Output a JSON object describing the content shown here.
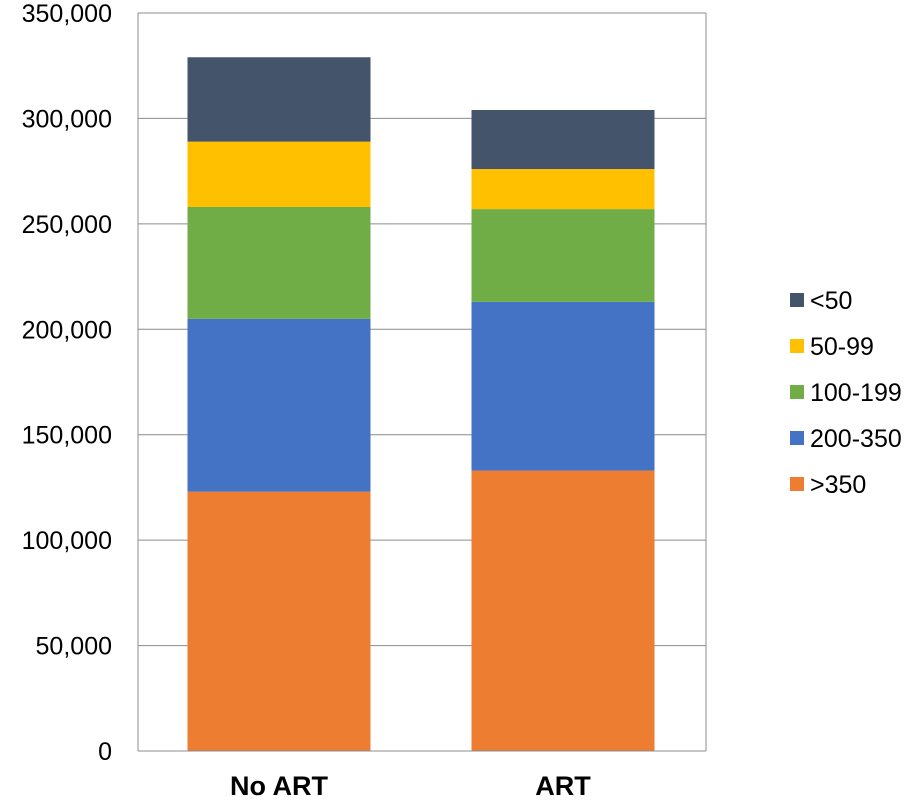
{
  "chart_data": {
    "type": "bar",
    "stacked": true,
    "title": "",
    "xlabel": "",
    "ylabel": "",
    "categories": [
      "No ART",
      "ART"
    ],
    "ylim": [
      0,
      350000
    ],
    "yticks": [
      "0",
      "50,000",
      "100,000",
      "150,000",
      "200,000",
      "250,000",
      "300,000",
      "350,000"
    ],
    "ytick_values": [
      0,
      50000,
      100000,
      150000,
      200000,
      250000,
      300000,
      350000
    ],
    "grid": true,
    "legend_position": "right",
    "series": [
      {
        "name": ">350",
        "color": "#ED7D31",
        "values": [
          123000,
          133000
        ]
      },
      {
        "name": "200-350",
        "color": "#4472C4",
        "values": [
          82000,
          80000
        ]
      },
      {
        "name": "100-199",
        "color": "#70AD47",
        "values": [
          53000,
          44000
        ]
      },
      {
        "name": "50-99",
        "color": "#FFC000",
        "values": [
          31000,
          19000
        ]
      },
      {
        "name": "<50",
        "color": "#44546A",
        "values": [
          40000,
          28000
        ]
      }
    ]
  }
}
